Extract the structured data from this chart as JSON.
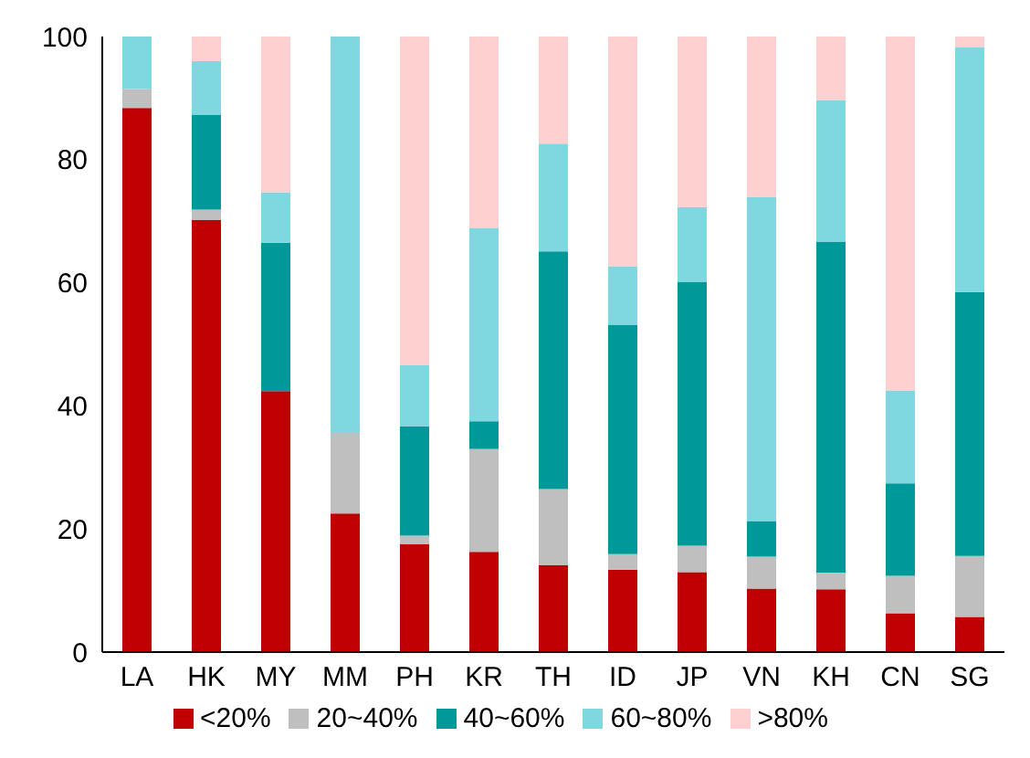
{
  "chart_data": {
    "type": "bar",
    "stacked": true,
    "categories": [
      "LA",
      "HK",
      "MY",
      "MM",
      "PH",
      "KR",
      "TH",
      "ID",
      "JP",
      "VN",
      "KH",
      "CN",
      "SG"
    ],
    "series": [
      {
        "name": "<20%",
        "color": "#c00000",
        "values": [
          88.4,
          70.2,
          42.4,
          22.5,
          17.5,
          16.3,
          14.1,
          13.4,
          13.0,
          10.3,
          10.2,
          6.3,
          5.7
        ]
      },
      {
        "name": "20~40%",
        "color": "#bfbfbf",
        "values": [
          3.1,
          1.7,
          0,
          13.1,
          1.4,
          16.7,
          12.4,
          2.5,
          4.3,
          5.2,
          2.7,
          6.1,
          9.9
        ]
      },
      {
        "name": "40~60%",
        "color": "#009999",
        "values": [
          0,
          15.4,
          24.1,
          0,
          17.8,
          4.5,
          38.6,
          37.2,
          42.8,
          5.8,
          53.7,
          15.0,
          42.9
        ]
      },
      {
        "name": "60~80%",
        "color": "#7fd7e0",
        "values": [
          8.5,
          8.7,
          8.2,
          64.4,
          9.9,
          31.4,
          17.5,
          9.6,
          12.2,
          52.6,
          23.1,
          15.1,
          39.8
        ]
      },
      {
        "name": ">80%",
        "color": "#ffd0d0",
        "values": [
          0,
          4.0,
          25.3,
          0,
          53.4,
          31.1,
          17.4,
          37.3,
          27.7,
          26.1,
          10.3,
          57.5,
          1.7
        ]
      }
    ],
    "ylim": [
      0,
      100
    ],
    "yticks": [
      0,
      20,
      40,
      60,
      80,
      100
    ],
    "grid": false,
    "legend": "bottom"
  }
}
